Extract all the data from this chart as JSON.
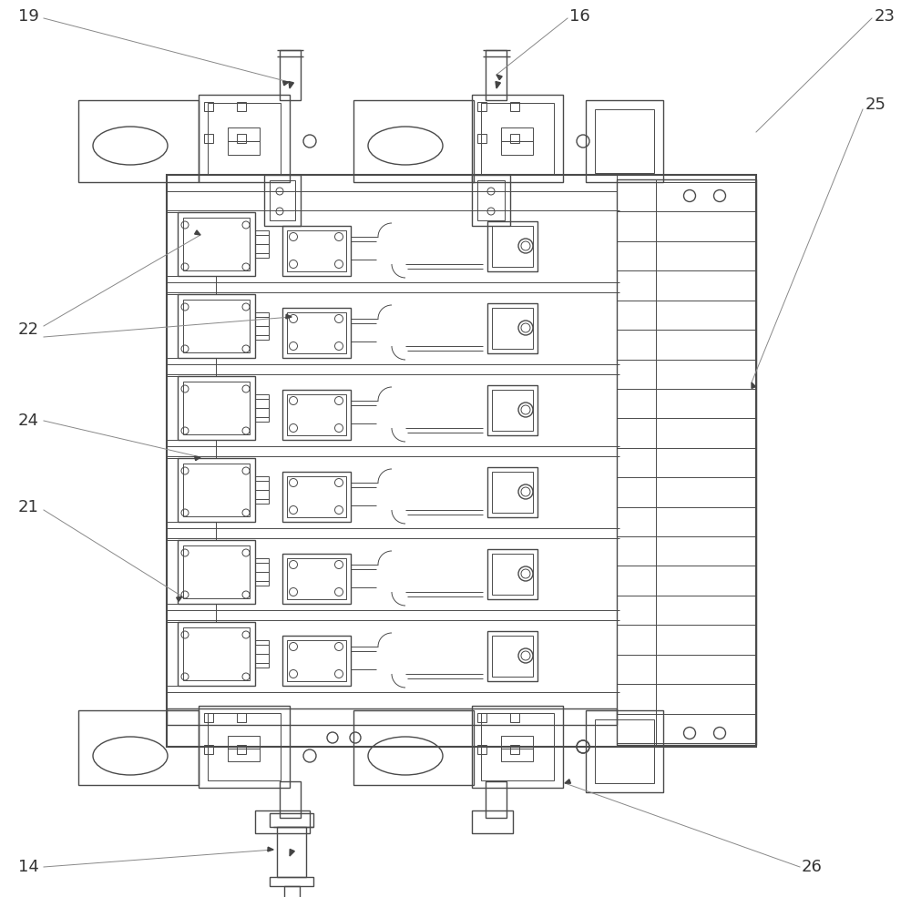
{
  "bg_color": "#ffffff",
  "lc": "#4a4a4a",
  "lw": 1.0,
  "tlw": 1.5,
  "flw": 0.7,
  "label_color": "#333333",
  "label_fontsize": 13,
  "arrow_color": "#444444",
  "leader_color": "#888888"
}
